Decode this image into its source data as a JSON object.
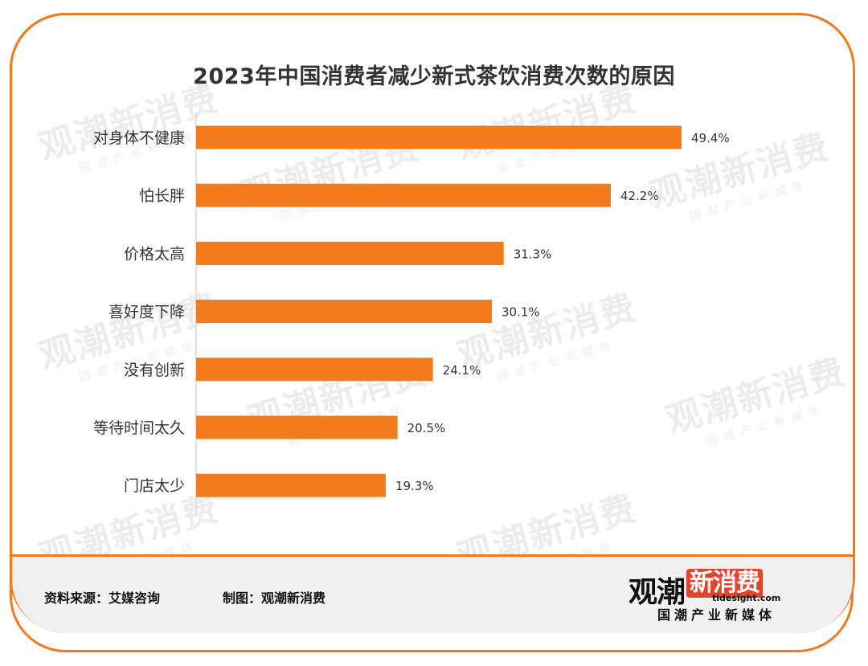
{
  "chart_data": {
    "type": "bar",
    "orientation": "horizontal",
    "title": "2023年中国消费者减少新式茶饮消费次数的原因",
    "categories": [
      "对身体不健康",
      "怕长胖",
      "价格太高",
      "喜好度下降",
      "没有创新",
      "等待时间太久",
      "门店太少"
    ],
    "values": [
      49.4,
      42.2,
      31.3,
      30.1,
      24.1,
      20.5,
      19.3
    ],
    "labels": [
      "49.4%",
      "42.2%",
      "31.3%",
      "30.1%",
      "24.1%",
      "20.5%",
      "19.3%"
    ],
    "unit": "%",
    "xlim": [
      0,
      49.4
    ],
    "bar_color": "#f47b1c",
    "grid": false,
    "legend": "none"
  },
  "footer": {
    "source": "资料来源：艾媒咨询",
    "made_by": "制图：观潮新消费"
  },
  "logo": {
    "name_part1": "观潮",
    "name_part2": "新消费",
    "domain": "tidesight.com",
    "tagline": "国潮产业新媒体"
  },
  "watermark": {
    "main": "观潮新消费",
    "domain": "tidesight.com",
    "tagline": "国潮产业新媒体"
  },
  "colors": {
    "accent": "#f2791e",
    "bar": "#f47b1c",
    "footer_bg": "#f0f0f0",
    "logo_red": "#e1452d"
  }
}
